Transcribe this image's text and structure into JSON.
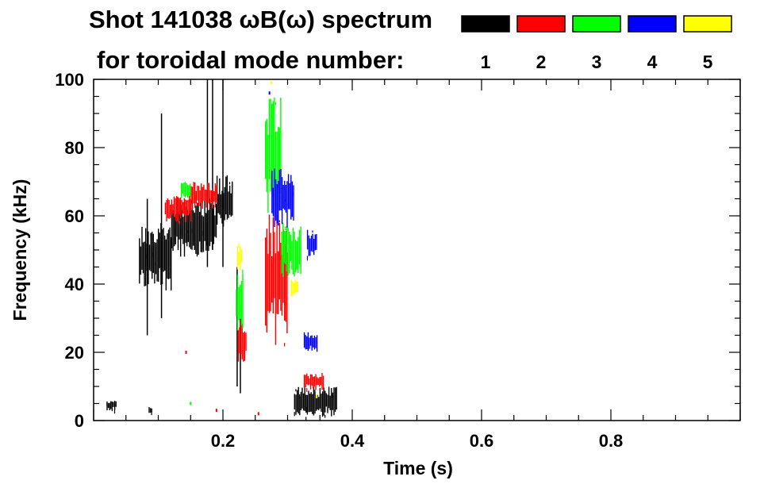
{
  "chart_data": {
    "type": "heatmap",
    "title_line1": "Shot 141038 ωB(ω) spectrum",
    "title_line2": "for toroidal mode number:",
    "xlabel": "Time (s)",
    "ylabel": "Frequency (kHz)",
    "xlim": [
      0,
      1.0
    ],
    "ylim": [
      0,
      100
    ],
    "xticks": [
      0.2,
      0.4,
      0.6,
      0.8
    ],
    "xtick_labels": [
      "0.2",
      "0.4",
      "0.6",
      "0.8"
    ],
    "yticks": [
      0,
      20,
      40,
      60,
      80,
      100
    ],
    "ytick_labels": [
      "0",
      "20",
      "40",
      "60",
      "80",
      "100"
    ],
    "legend": [
      {
        "mode": "1",
        "color": "#000000"
      },
      {
        "mode": "2",
        "color": "#ff0000"
      },
      {
        "mode": "3",
        "color": "#00ff00"
      },
      {
        "mode": "4",
        "color": "#0000ff"
      },
      {
        "mode": "5",
        "color": "#ffff00"
      }
    ],
    "features": [
      {
        "mode": 1,
        "kind": "blob",
        "t": [
          0.07,
          0.12
        ],
        "f": [
          38,
          58
        ]
      },
      {
        "mode": 1,
        "kind": "blob",
        "t": [
          0.12,
          0.19
        ],
        "f": [
          48,
          66
        ]
      },
      {
        "mode": 1,
        "kind": "blob",
        "t": [
          0.19,
          0.215
        ],
        "f": [
          55,
          72
        ]
      },
      {
        "mode": 1,
        "kind": "vline",
        "t": 0.083,
        "f": [
          25,
          65
        ]
      },
      {
        "mode": 1,
        "kind": "vline",
        "t": 0.105,
        "f": [
          30,
          90
        ]
      },
      {
        "mode": 1,
        "kind": "vline",
        "t": 0.176,
        "f": [
          45,
          100
        ]
      },
      {
        "mode": 1,
        "kind": "vline",
        "t": 0.184,
        "f": [
          50,
          100
        ]
      },
      {
        "mode": 1,
        "kind": "vline",
        "t": 0.2,
        "f": [
          45,
          100
        ]
      },
      {
        "mode": 1,
        "kind": "vline",
        "t": 0.222,
        "f": [
          10,
          45
        ]
      },
      {
        "mode": 1,
        "kind": "vline",
        "t": 0.227,
        "f": [
          8,
          30
        ]
      },
      {
        "mode": 1,
        "kind": "blob",
        "t": [
          0.31,
          0.375
        ],
        "f": [
          1,
          10
        ]
      },
      {
        "mode": 1,
        "kind": "blob",
        "t": [
          0.02,
          0.035
        ],
        "f": [
          3,
          6
        ]
      },
      {
        "mode": 1,
        "kind": "blob",
        "t": [
          0.085,
          0.09
        ],
        "f": [
          2,
          4
        ]
      },
      {
        "mode": 2,
        "kind": "blob",
        "t": [
          0.11,
          0.15
        ],
        "f": [
          58,
          66
        ]
      },
      {
        "mode": 2,
        "kind": "blob",
        "t": [
          0.15,
          0.19
        ],
        "f": [
          62,
          70
        ]
      },
      {
        "mode": 2,
        "kind": "blob",
        "t": [
          0.265,
          0.3
        ],
        "f": [
          22,
          62
        ]
      },
      {
        "mode": 2,
        "kind": "blob",
        "t": [
          0.223,
          0.235
        ],
        "f": [
          17,
          30
        ]
      },
      {
        "mode": 2,
        "kind": "blob",
        "t": [
          0.325,
          0.355
        ],
        "f": [
          9,
          14
        ]
      },
      {
        "mode": 2,
        "kind": "dot",
        "t": 0.143,
        "f": 20
      },
      {
        "mode": 2,
        "kind": "dot",
        "t": 0.255,
        "f": 2
      },
      {
        "mode": 2,
        "kind": "dot",
        "t": 0.19,
        "f": 3
      },
      {
        "mode": 3,
        "kind": "blob",
        "t": [
          0.135,
          0.15
        ],
        "f": [
          65,
          70
        ]
      },
      {
        "mode": 3,
        "kind": "blob",
        "t": [
          0.265,
          0.29
        ],
        "f": [
          60,
          95
        ]
      },
      {
        "mode": 3,
        "kind": "blob",
        "t": [
          0.29,
          0.32
        ],
        "f": [
          42,
          58
        ]
      },
      {
        "mode": 3,
        "kind": "blob",
        "t": [
          0.22,
          0.23
        ],
        "f": [
          25,
          45
        ]
      },
      {
        "mode": 3,
        "kind": "dot",
        "t": 0.15,
        "f": 5
      },
      {
        "mode": 4,
        "kind": "blob",
        "t": [
          0.275,
          0.31
        ],
        "f": [
          56,
          74
        ]
      },
      {
        "mode": 4,
        "kind": "blob",
        "t": [
          0.33,
          0.345
        ],
        "f": [
          48,
          56
        ]
      },
      {
        "mode": 4,
        "kind": "blob",
        "t": [
          0.325,
          0.345
        ],
        "f": [
          20,
          26
        ]
      },
      {
        "mode": 4,
        "kind": "dot",
        "t": 0.272,
        "f": 96
      },
      {
        "mode": 5,
        "kind": "blob",
        "t": [
          0.305,
          0.315
        ],
        "f": [
          36,
          42
        ]
      },
      {
        "mode": 5,
        "kind": "blob",
        "t": [
          0.222,
          0.228
        ],
        "f": [
          44,
          52
        ]
      },
      {
        "mode": 5,
        "kind": "dot",
        "t": 0.345,
        "f": 7
      },
      {
        "mode": 5,
        "kind": "dot",
        "t": 0.275,
        "f": 99
      }
    ]
  }
}
